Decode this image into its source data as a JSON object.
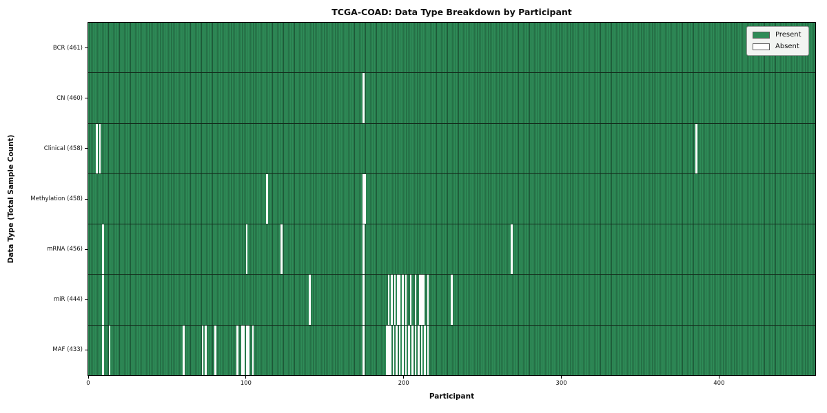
{
  "title": "TCGA-COAD: Data Type Breakdown by Participant",
  "xlabel": "Participant",
  "ylabel": "Data Type (Total Sample Count)",
  "legend": {
    "present_label": "Present",
    "absent_label": "Absent",
    "position": "upper right"
  },
  "colors": {
    "present": "#2E8B57",
    "absent": "#fdfdfd",
    "column_edge": "#1c5636",
    "row_divider": "#132a1b",
    "plot_border": "#000000",
    "legend_bg": "#f2f4f2",
    "legend_border": "#9b9b9b",
    "text": "#111111"
  },
  "chart_data": {
    "type": "heatmap",
    "title": "TCGA-COAD: Data Type Breakdown by Participant",
    "xlabel": "Participant",
    "ylabel": "Data Type (Total Sample Count)",
    "n_participants": 461,
    "x_ticks": [
      0,
      100,
      200,
      300,
      400
    ],
    "xlim": [
      0,
      461
    ],
    "grid": "column-separators-only",
    "legend_position": "upper right",
    "value_encoding": {
      "present": 1,
      "absent": 0
    },
    "rows": [
      {
        "name": "BCR",
        "label": "BCR (461)",
        "total": 461,
        "absent_participants": []
      },
      {
        "name": "CN",
        "label": "CN (460)",
        "total": 460,
        "absent_participants": [
          174
        ]
      },
      {
        "name": "Clinical",
        "label": "Clinical (458)",
        "total": 458,
        "absent_participants": [
          5,
          7,
          385
        ]
      },
      {
        "name": "Methylation",
        "label": "Methylation (458)",
        "total": 458,
        "absent_participants": [
          113,
          174,
          175
        ]
      },
      {
        "name": "mRNA",
        "label": "mRNA (456)",
        "total": 456,
        "absent_participants": [
          9,
          100,
          122,
          174,
          268
        ]
      },
      {
        "name": "miR",
        "label": "miR (444)",
        "total": 444,
        "absent_participants": [
          9,
          140,
          174,
          190,
          192,
          194,
          196,
          197,
          199,
          201,
          204,
          207,
          210,
          211,
          212,
          215,
          230
        ]
      },
      {
        "name": "MAF",
        "label": "MAF (433)",
        "total": 433,
        "absent_participants": [
          9,
          13,
          60,
          72,
          74,
          80,
          94,
          97,
          98,
          100,
          101,
          104,
          174,
          189,
          190,
          191,
          193,
          195,
          197,
          199,
          201,
          203,
          205,
          207,
          209,
          211,
          213,
          215
        ]
      }
    ]
  }
}
